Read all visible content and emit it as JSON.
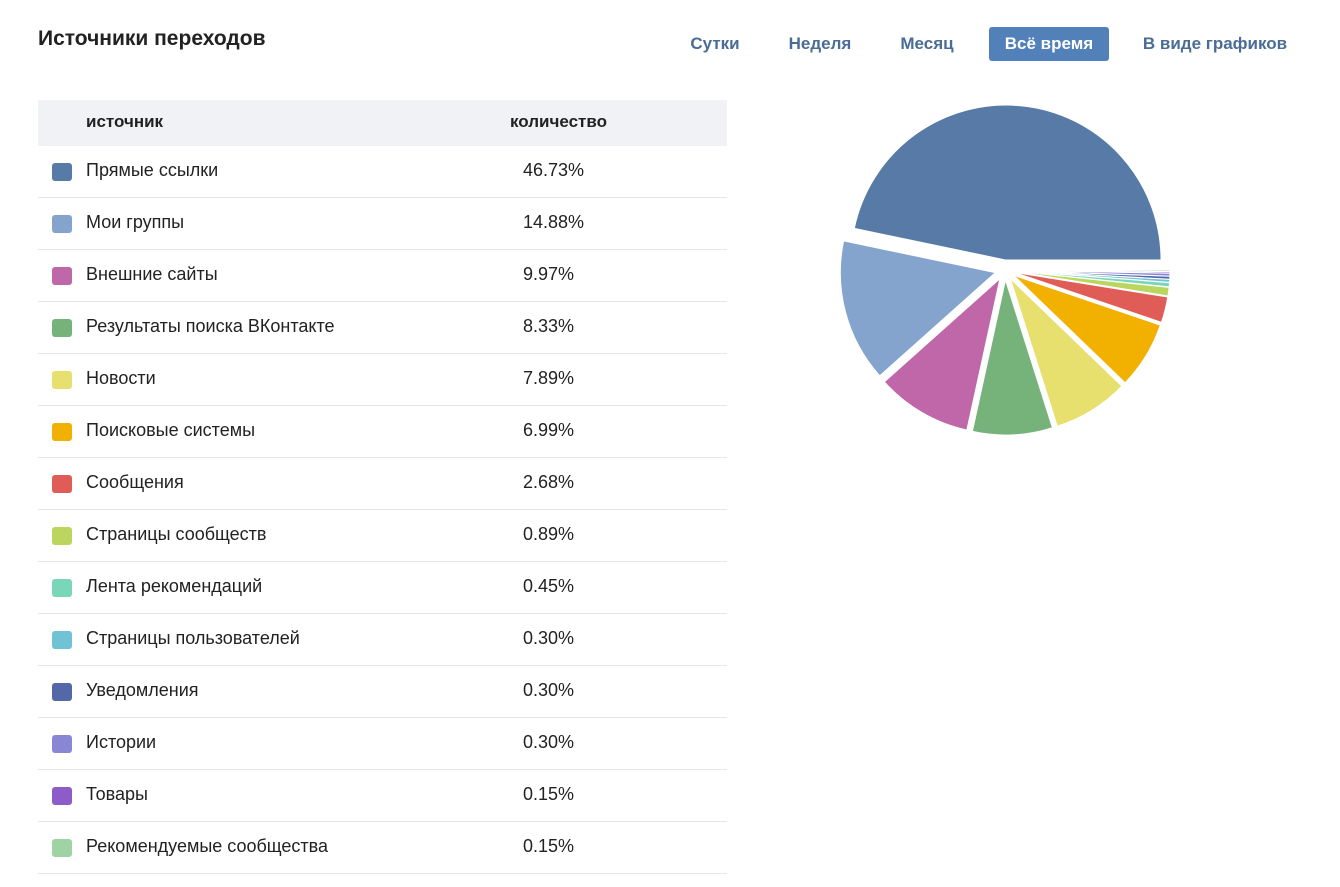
{
  "header": {
    "title": "Источники переходов",
    "tabs": [
      {
        "label": "Сутки",
        "active": false
      },
      {
        "label": "Неделя",
        "active": false
      },
      {
        "label": "Месяц",
        "active": false
      },
      {
        "label": "Всё время",
        "active": true
      },
      {
        "label": "В виде графиков",
        "active": false
      }
    ]
  },
  "table": {
    "col_source": "источник",
    "col_count": "количество",
    "rows": [
      {
        "label": "Прямые ссылки",
        "value": "46.73%",
        "color": "#577aa6"
      },
      {
        "label": "Мои группы",
        "value": "14.88%",
        "color": "#84a4cd"
      },
      {
        "label": "Внешние сайты",
        "value": "9.97%",
        "color": "#bf67a8"
      },
      {
        "label": "Результаты поиска ВКонтакте",
        "value": "8.33%",
        "color": "#76b37b"
      },
      {
        "label": "Новости",
        "value": "7.89%",
        "color": "#e8e06e"
      },
      {
        "label": "Поисковые системы",
        "value": "6.99%",
        "color": "#f2b000"
      },
      {
        "label": "Сообщения",
        "value": "2.68%",
        "color": "#e05d57"
      },
      {
        "label": "Страницы сообществ",
        "value": "0.89%",
        "color": "#bad65e"
      },
      {
        "label": "Лента рекомендаций",
        "value": "0.45%",
        "color": "#7ad6b8"
      },
      {
        "label": "Страницы пользователей",
        "value": "0.30%",
        "color": "#6fc3d4"
      },
      {
        "label": "Уведомления",
        "value": "0.30%",
        "color": "#5467a6"
      },
      {
        "label": "Истории",
        "value": "0.30%",
        "color": "#8a86d6"
      },
      {
        "label": "Товары",
        "value": "0.15%",
        "color": "#8c5cc9"
      },
      {
        "label": "Рекомендуемые сообщества",
        "value": "0.15%",
        "color": "#9fd3a3"
      }
    ]
  },
  "chart_data": {
    "type": "pie",
    "categories": [
      "Прямые ссылки",
      "Мои группы",
      "Внешние сайты",
      "Результаты поиска ВКонтакте",
      "Новости",
      "Поисковые системы",
      "Сообщения",
      "Страницы сообществ",
      "Лента рекомендаций",
      "Страницы пользователей",
      "Уведомления",
      "Истории",
      "Товары",
      "Рекомендуемые сообщества"
    ],
    "values": [
      46.73,
      14.88,
      9.97,
      8.33,
      7.89,
      6.99,
      2.68,
      0.89,
      0.45,
      0.3,
      0.3,
      0.3,
      0.15,
      0.15
    ],
    "colors": [
      "#577aa6",
      "#84a4cd",
      "#bf67a8",
      "#76b37b",
      "#e8e06e",
      "#f2b000",
      "#e05d57",
      "#bad65e",
      "#7ad6b8",
      "#6fc3d4",
      "#5467a6",
      "#8a86d6",
      "#8c5cc9",
      "#9fd3a3"
    ],
    "exploded": true
  }
}
